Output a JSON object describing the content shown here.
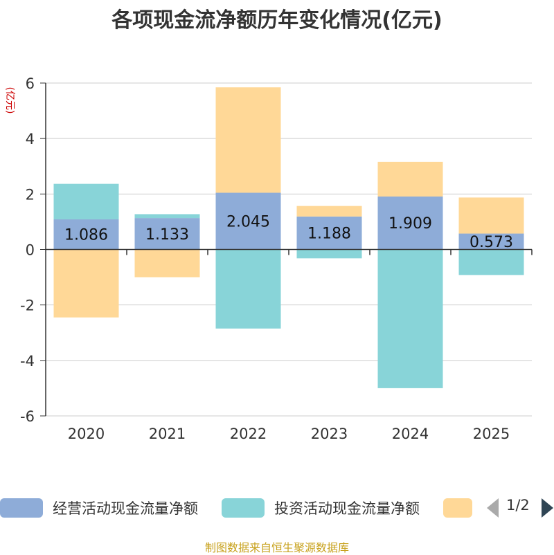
{
  "chart_data": {
    "type": "bar",
    "stacked": true,
    "title": "各项现金流净额历年变化情况(亿元)",
    "ylabel": "(亿元)",
    "ylim": [
      -6,
      6
    ],
    "yticks": [
      6,
      4,
      2,
      0,
      -2,
      -4,
      -6
    ],
    "categories": [
      "2020",
      "2021",
      "2022",
      "2023",
      "2024",
      "2025"
    ],
    "series": [
      {
        "name": "经营活动现金流量净额",
        "color": "#8eacd8",
        "values": [
          1.086,
          1.133,
          2.045,
          1.188,
          1.909,
          0.573
        ],
        "labels": [
          "1.086",
          "1.133",
          "2.045",
          "1.188",
          "1.909",
          "0.573"
        ]
      },
      {
        "name": "投资活动现金流量净额",
        "color": "#88d4d8",
        "values": [
          1.28,
          0.14,
          -2.85,
          -0.32,
          -5.0,
          -0.92
        ]
      },
      {
        "name": "",
        "color": "#ffd897",
        "values": [
          -2.45,
          -1.0,
          3.8,
          0.38,
          1.25,
          1.3
        ]
      }
    ]
  },
  "legend": {
    "items": [
      {
        "label": "经营活动现金流量净额",
        "color": "#8eacd8"
      },
      {
        "label": "投资活动现金流量净额",
        "color": "#88d4d8"
      },
      {
        "label": "",
        "color": "#ffd897"
      }
    ],
    "page": "1/2"
  },
  "source": "制图数据来自恒生聚源数据库"
}
